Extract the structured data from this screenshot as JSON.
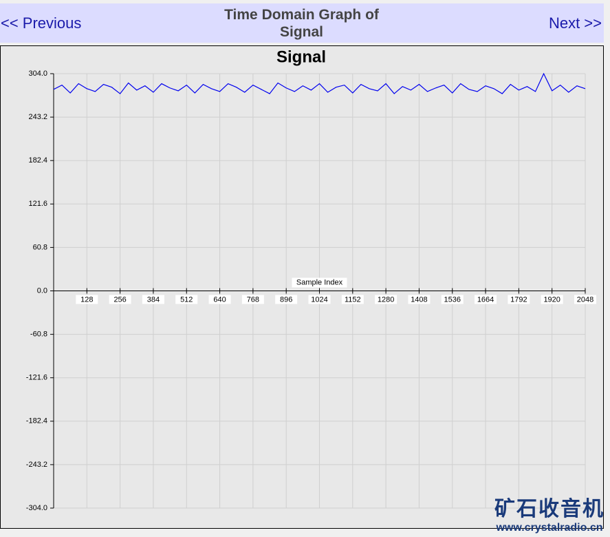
{
  "nav": {
    "previous": "<< Previous",
    "next": "Next >>",
    "title": "Time Domain Graph of Signal"
  },
  "chart_data": {
    "type": "line",
    "title": "Signal",
    "x_label": "Sample Index",
    "x": [
      0,
      32,
      64,
      96,
      128,
      160,
      192,
      224,
      256,
      288,
      320,
      352,
      384,
      416,
      448,
      480,
      512,
      544,
      576,
      608,
      640,
      672,
      704,
      736,
      768,
      800,
      832,
      864,
      896,
      928,
      960,
      992,
      1024,
      1056,
      1088,
      1120,
      1152,
      1184,
      1216,
      1248,
      1280,
      1312,
      1344,
      1376,
      1408,
      1440,
      1472,
      1504,
      1536,
      1568,
      1600,
      1632,
      1664,
      1696,
      1728,
      1760,
      1792,
      1824,
      1856,
      1888,
      1920,
      1952,
      1984,
      2016,
      2048
    ],
    "series": [
      {
        "name": "Signal",
        "color": "#0000ee",
        "values": [
          282,
          288,
          277,
          290,
          283,
          279,
          289,
          285,
          276,
          291,
          281,
          287,
          278,
          290,
          284,
          280,
          288,
          277,
          289,
          283,
          279,
          290,
          285,
          278,
          288,
          282,
          276,
          291,
          284,
          279,
          287,
          281,
          290,
          278,
          285,
          288,
          277,
          289,
          283,
          280,
          290,
          276,
          286,
          281,
          289,
          279,
          284,
          288,
          277,
          290,
          282,
          279,
          287,
          283,
          276,
          289,
          281,
          286,
          279,
          304,
          280,
          288,
          278,
          287,
          283
        ]
      }
    ],
    "xlim": [
      0,
      2048
    ],
    "xticks": [
      128,
      256,
      384,
      512,
      640,
      768,
      896,
      1024,
      1152,
      1280,
      1408,
      1536,
      1664,
      1792,
      1920,
      2048
    ],
    "ylim": [
      -304,
      304
    ],
    "yticks": [
      {
        "value": 304,
        "label": "304.0"
      },
      {
        "value": 243.2,
        "label": "243.2"
      },
      {
        "value": 182.4,
        "label": "182.4"
      },
      {
        "value": 121.6,
        "label": "121.6"
      },
      {
        "value": 60.8,
        "label": "60.8"
      },
      {
        "value": 0,
        "label": "0.0"
      },
      {
        "value": -60.8,
        "label": "-60.8"
      },
      {
        "value": -121.6,
        "label": "-121.6"
      },
      {
        "value": -182.4,
        "label": "-182.4"
      },
      {
        "value": -243.2,
        "label": "-243.2"
      },
      {
        "value": -304,
        "label": "-304.0"
      }
    ],
    "grid": true
  },
  "watermark": {
    "name": "矿石收音机",
    "url": "www.crystalradio.cn"
  }
}
